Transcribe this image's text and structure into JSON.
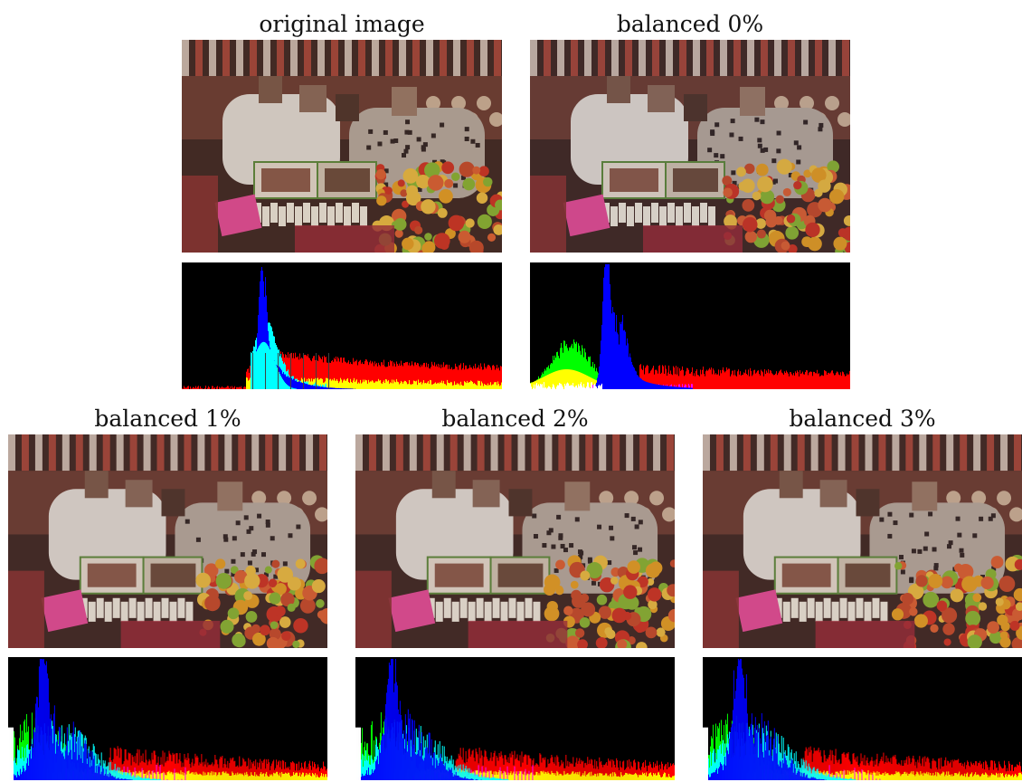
{
  "figure": {
    "panels": [
      {
        "caption": "original image",
        "photo_icon": "market-stall-photo",
        "histogram_icon": "rgb-histogram",
        "tint": "#6a4a3a"
      },
      {
        "caption": "balanced 0%",
        "photo_icon": "market-stall-photo",
        "histogram_icon": "rgb-histogram",
        "tint": "#5a4048"
      },
      {
        "caption": "balanced 1%",
        "photo_icon": "market-stall-photo",
        "histogram_icon": "rgb-histogram",
        "tint": "#6b4a40"
      },
      {
        "caption": "balanced 2%",
        "photo_icon": "market-stall-photo",
        "histogram_icon": "rgb-histogram",
        "tint": "#6b4a40"
      },
      {
        "caption": "balanced 3%",
        "photo_icon": "market-stall-photo",
        "histogram_icon": "rgb-histogram",
        "tint": "#6b4a40"
      }
    ]
  }
}
